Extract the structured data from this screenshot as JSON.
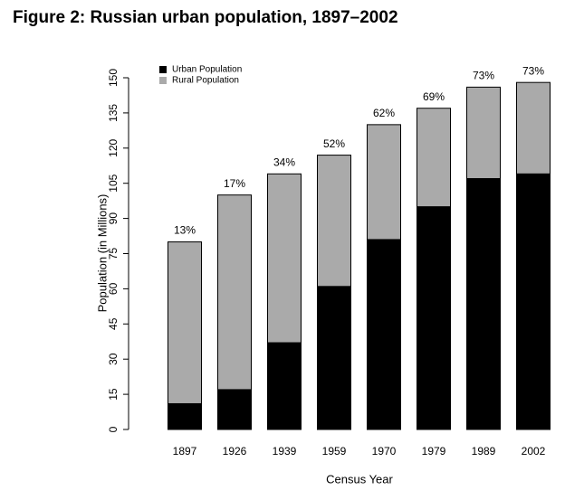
{
  "chart_data": {
    "type": "stacked_bar",
    "title": "Figure 2: Russian urban population, 1897–2002",
    "xlabel": "Census Year",
    "ylabel": "Population (in Millions)",
    "categories": [
      "1897",
      "1926",
      "1939",
      "1959",
      "1970",
      "1979",
      "1989",
      "2002"
    ],
    "series": [
      {
        "name": "Urban Population",
        "color": "#000000",
        "values": [
          11,
          17,
          37,
          61,
          81,
          95,
          107,
          109
        ]
      },
      {
        "name": "Rural Population",
        "color": "#aaaaaa",
        "values": [
          69,
          83,
          72,
          56,
          49,
          42,
          39,
          39
        ]
      }
    ],
    "bar_labels": [
      "13%",
      "17%",
      "34%",
      "52%",
      "62%",
      "69%",
      "73%",
      "73%"
    ],
    "ylim": [
      0,
      150
    ],
    "yticks": [
      0,
      15,
      30,
      45,
      60,
      75,
      90,
      105,
      120,
      135,
      150
    ],
    "legend": "top-left"
  }
}
